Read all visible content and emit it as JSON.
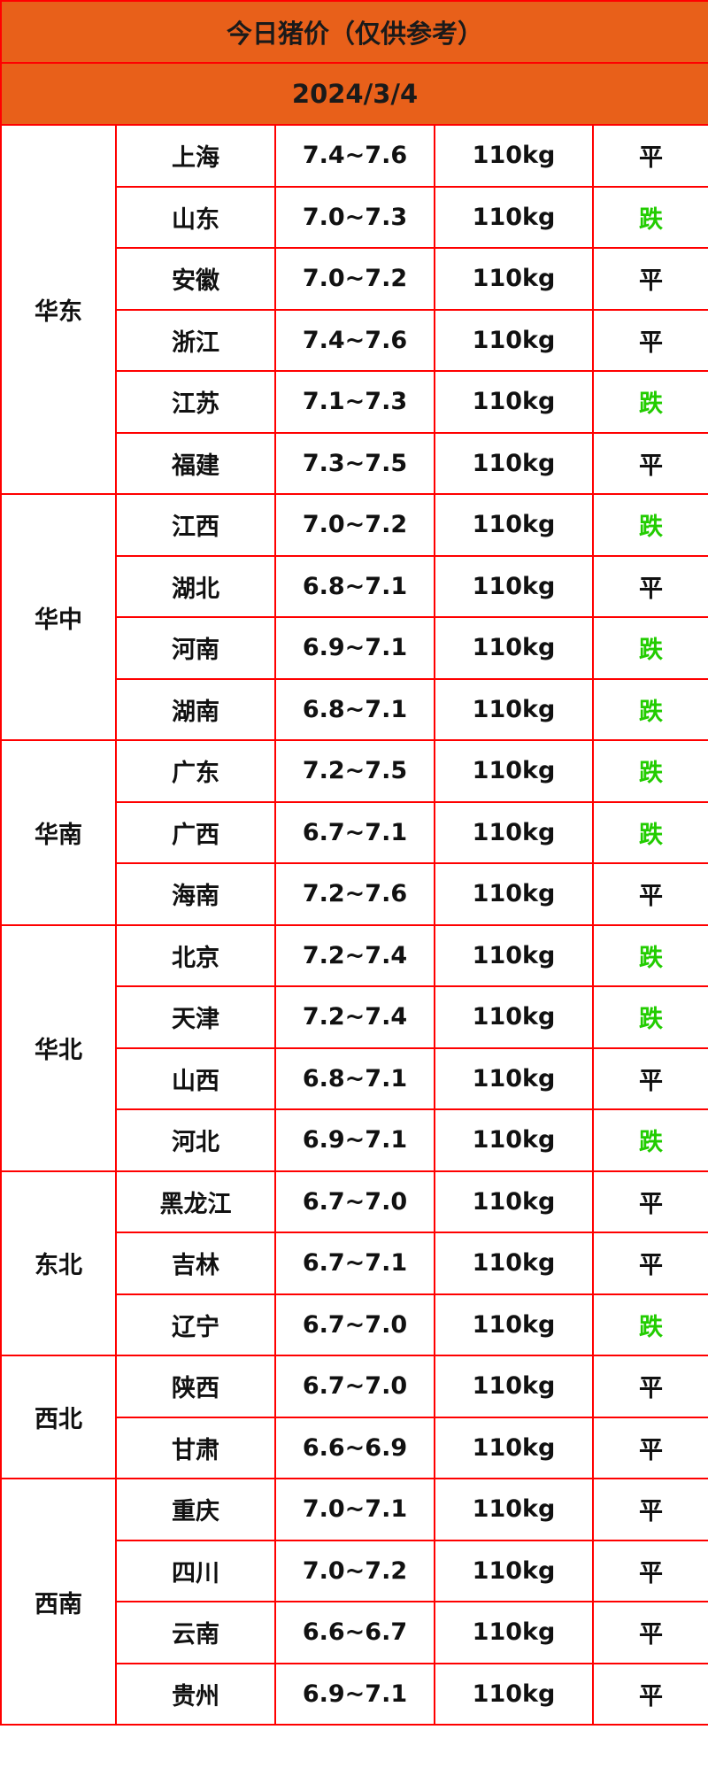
{
  "title": "今日猪价（仅供参考）",
  "date": "2024/3/4",
  "colors": {
    "header_bg": "#e8601a",
    "border": "#ff0000",
    "down": "#22cc00",
    "flat": "#111111"
  },
  "regions": [
    {
      "name": "华东",
      "rows": [
        {
          "province": "上海",
          "price": "7.4~7.6",
          "weight": "110kg",
          "trend": "平"
        },
        {
          "province": "山东",
          "price": "7.0~7.3",
          "weight": "110kg",
          "trend": "跌"
        },
        {
          "province": "安徽",
          "price": "7.0~7.2",
          "weight": "110kg",
          "trend": "平"
        },
        {
          "province": "浙江",
          "price": "7.4~7.6",
          "weight": "110kg",
          "trend": "平"
        },
        {
          "province": "江苏",
          "price": "7.1~7.3",
          "weight": "110kg",
          "trend": "跌"
        },
        {
          "province": "福建",
          "price": "7.3~7.5",
          "weight": "110kg",
          "trend": "平"
        }
      ]
    },
    {
      "name": "华中",
      "rows": [
        {
          "province": "江西",
          "price": "7.0~7.2",
          "weight": "110kg",
          "trend": "跌"
        },
        {
          "province": "湖北",
          "price": "6.8~7.1",
          "weight": "110kg",
          "trend": "平"
        },
        {
          "province": "河南",
          "price": "6.9~7.1",
          "weight": "110kg",
          "trend": "跌"
        },
        {
          "province": "湖南",
          "price": "6.8~7.1",
          "weight": "110kg",
          "trend": "跌"
        }
      ]
    },
    {
      "name": "华南",
      "rows": [
        {
          "province": "广东",
          "price": "7.2~7.5",
          "weight": "110kg",
          "trend": "跌"
        },
        {
          "province": "广西",
          "price": "6.7~7.1",
          "weight": "110kg",
          "trend": "跌"
        },
        {
          "province": "海南",
          "price": "7.2~7.6",
          "weight": "110kg",
          "trend": "平"
        }
      ]
    },
    {
      "name": "华北",
      "rows": [
        {
          "province": "北京",
          "price": "7.2~7.4",
          "weight": "110kg",
          "trend": "跌"
        },
        {
          "province": "天津",
          "price": "7.2~7.4",
          "weight": "110kg",
          "trend": "跌"
        },
        {
          "province": "山西",
          "price": "6.8~7.1",
          "weight": "110kg",
          "trend": "平"
        },
        {
          "province": "河北",
          "price": "6.9~7.1",
          "weight": "110kg",
          "trend": "跌"
        }
      ]
    },
    {
      "name": "东北",
      "rows": [
        {
          "province": "黑龙江",
          "price": "6.7~7.0",
          "weight": "110kg",
          "trend": "平"
        },
        {
          "province": "吉林",
          "price": "6.7~7.1",
          "weight": "110kg",
          "trend": "平"
        },
        {
          "province": "辽宁",
          "price": "6.7~7.0",
          "weight": "110kg",
          "trend": "跌"
        }
      ]
    },
    {
      "name": "西北",
      "rows": [
        {
          "province": "陕西",
          "price": "6.7~7.0",
          "weight": "110kg",
          "trend": "平"
        },
        {
          "province": "甘肃",
          "price": "6.6~6.9",
          "weight": "110kg",
          "trend": "平"
        }
      ]
    },
    {
      "name": "西南",
      "rows": [
        {
          "province": "重庆",
          "price": "7.0~7.1",
          "weight": "110kg",
          "trend": "平"
        },
        {
          "province": "四川",
          "price": "7.0~7.2",
          "weight": "110kg",
          "trend": "平"
        },
        {
          "province": "云南",
          "price": "6.6~6.7",
          "weight": "110kg",
          "trend": "平"
        },
        {
          "province": "贵州",
          "price": "6.9~7.1",
          "weight": "110kg",
          "trend": "平"
        }
      ]
    }
  ]
}
